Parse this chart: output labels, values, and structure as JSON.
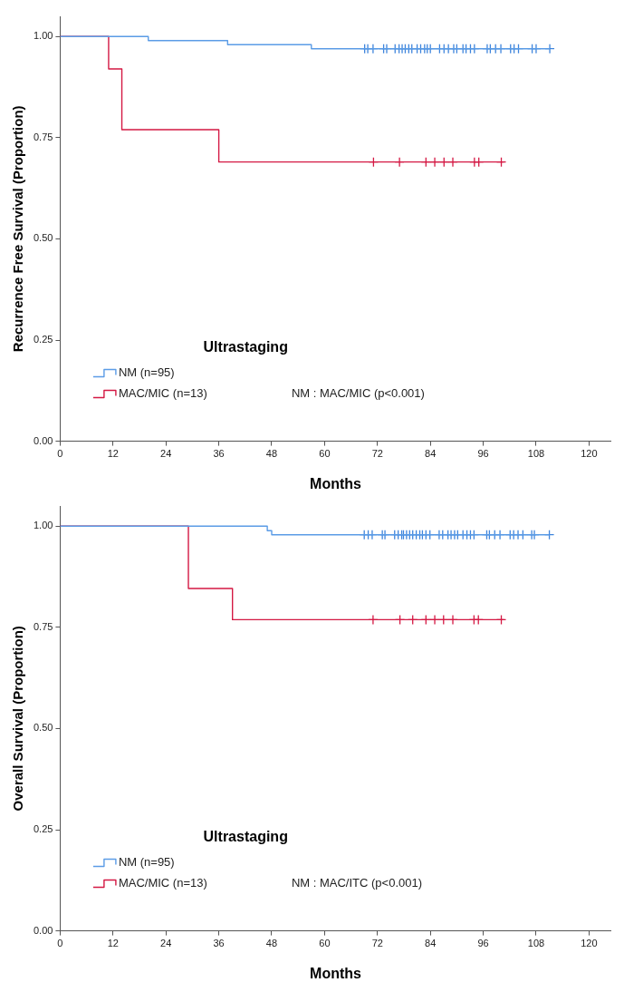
{
  "chart_data": [
    {
      "type": "step",
      "xlabel": "Months",
      "ylabel": "Recurrence Free Survival (Proportion)",
      "legend_title": "Ultrastaging",
      "legend": "bottom left",
      "grid": false,
      "annotations": [
        "NM : MAC/MIC (p<0.001)"
      ],
      "xlim": [
        0,
        125
      ],
      "ylim": [
        0,
        1.05
      ],
      "xticks": [
        0,
        12,
        24,
        36,
        48,
        60,
        72,
        84,
        96,
        108,
        120
      ],
      "yticks": [
        {
          "value": 0,
          "label": "0.00"
        },
        {
          "value": 0.25,
          "label": "0.25"
        },
        {
          "value": 0.5,
          "label": "0.50"
        },
        {
          "value": 0.75,
          "label": "0.75"
        },
        {
          "value": 1,
          "label": "1.00"
        }
      ],
      "series": [
        {
          "name": "NM (n=95)",
          "color": "#5b9ce6",
          "marker": "none",
          "x": [
            0,
            20,
            38,
            57,
            111.1
          ],
          "values": [
            1,
            0.99,
            0.98,
            0.97,
            0.97
          ]
        },
        {
          "name": "MAC/MIC (n=13)",
          "color": "#d41843",
          "marker": "none",
          "x": [
            0,
            11,
            14,
            36,
            100.7
          ],
          "values": [
            1,
            0.92,
            0.77,
            0.69,
            0.69
          ]
        },
        {
          "type": "scatter",
          "color": "#3f85dc",
          "marker": "cross",
          "x": [
            69.1,
            69.8,
            71.0,
            73.4,
            74.1,
            76.0,
            76.9,
            77.6,
            78.3,
            79.1,
            79.8,
            81.0,
            81.8,
            82.7,
            83.3,
            84.0,
            86.1,
            87.1,
            88.1,
            89.3,
            90.0,
            91.4,
            92.1,
            93.1,
            94.0,
            96.9,
            97.6,
            98.8,
            100.0,
            102.2,
            103.0,
            104.0,
            107.1,
            108.0,
            111.1
          ],
          "values": [
            0.97,
            0.97,
            0.97,
            0.97,
            0.97,
            0.97,
            0.97,
            0.97,
            0.97,
            0.97,
            0.97,
            0.97,
            0.97,
            0.97,
            0.97,
            0.97,
            0.97,
            0.97,
            0.97,
            0.97,
            0.97,
            0.97,
            0.97,
            0.97,
            0.97,
            0.97,
            0.97,
            0.97,
            0.97,
            0.97,
            0.97,
            0.97,
            0.97,
            0.97,
            0.97
          ]
        },
        {
          "type": "scatter",
          "color": "#d41843",
          "marker": "cross",
          "x": [
            71.1,
            77.0,
            83.0,
            85.0,
            87.1,
            89.1,
            94.0,
            95.0,
            100.1
          ],
          "values": [
            0.69,
            0.69,
            0.69,
            0.69,
            0.69,
            0.69,
            0.69,
            0.69,
            0.69
          ]
        }
      ]
    },
    {
      "type": "step",
      "xlabel": "Months",
      "ylabel": "Overall Survival (Proportion)",
      "legend_title": "Ultrastaging",
      "legend": "bottom left",
      "grid": false,
      "annotations": [
        "NM : MAC/ITC (p<0.001)"
      ],
      "xlim": [
        0,
        125
      ],
      "ylim": [
        0,
        1.05
      ],
      "xticks": [
        0,
        12,
        24,
        36,
        48,
        60,
        72,
        84,
        96,
        108,
        120
      ],
      "yticks": [
        {
          "value": 0,
          "label": "0.00"
        },
        {
          "value": 0.25,
          "label": "0.25"
        },
        {
          "value": 0.5,
          "label": "0.50"
        },
        {
          "value": 0.75,
          "label": "0.75"
        },
        {
          "value": 1,
          "label": "1.00"
        }
      ],
      "series": [
        {
          "name": "NM (n=95)",
          "color": "#5b9ce6",
          "marker": "none",
          "x": [
            0,
            47,
            48,
            111
          ],
          "values": [
            1,
            0.989,
            0.979,
            0.979
          ]
        },
        {
          "name": "MAC/MIC (n=13)",
          "color": "#d41843",
          "marker": "none",
          "x": [
            0,
            29.1,
            39.1,
            100.7
          ],
          "values": [
            1,
            0.846,
            0.769,
            0.769
          ]
        },
        {
          "type": "scatter",
          "color": "#3f85dc",
          "marker": "cross",
          "x": [
            69.0,
            69.9,
            70.8,
            73.1,
            73.7,
            75.9,
            76.7,
            77.5,
            77.9,
            78.6,
            79.3,
            80.0,
            80.8,
            81.6,
            82.2,
            83.0,
            83.9,
            86.0,
            86.8,
            88.0,
            88.7,
            89.5,
            90.2,
            91.4,
            92.3,
            93.1,
            93.9,
            96.8,
            97.4,
            98.6,
            99.8,
            102.1,
            102.9,
            103.9,
            105.0,
            107.0,
            107.6,
            111.0
          ],
          "values": [
            0.979,
            0.979,
            0.979,
            0.979,
            0.979,
            0.979,
            0.979,
            0.979,
            0.979,
            0.979,
            0.979,
            0.979,
            0.979,
            0.979,
            0.979,
            0.979,
            0.979,
            0.979,
            0.979,
            0.979,
            0.979,
            0.979,
            0.979,
            0.979,
            0.979,
            0.979,
            0.979,
            0.979,
            0.979,
            0.979,
            0.979,
            0.979,
            0.979,
            0.979,
            0.979,
            0.979,
            0.979,
            0.979
          ]
        },
        {
          "type": "scatter",
          "color": "#d41843",
          "marker": "cross",
          "x": [
            71.0,
            77.1,
            80.0,
            83.0,
            85.0,
            87.0,
            89.1,
            93.9,
            94.9,
            100.1
          ],
          "values": [
            0.769,
            0.769,
            0.769,
            0.769,
            0.769,
            0.769,
            0.769,
            0.769,
            0.769,
            0.769
          ]
        }
      ]
    }
  ]
}
